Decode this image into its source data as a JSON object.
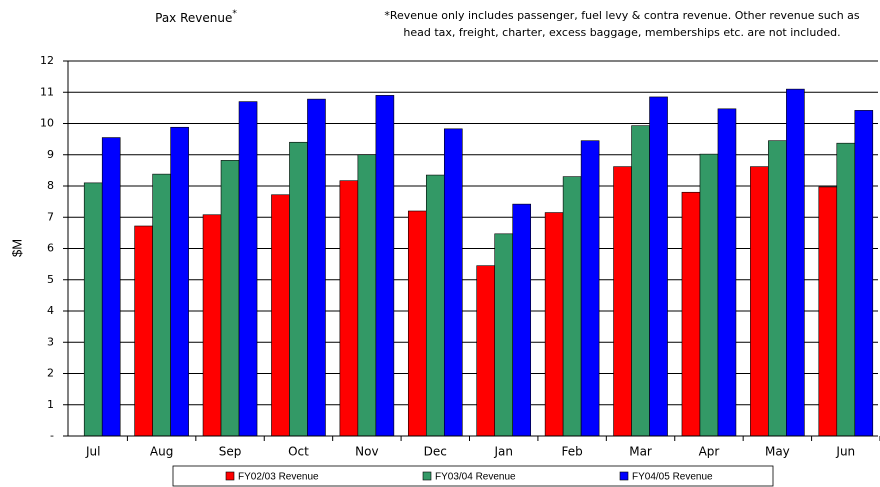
{
  "chart_data": {
    "type": "bar",
    "title": "Pax Revenue",
    "title_mark": "*",
    "footnote": [
      "*Revenue only includes passenger, fuel levy & contra revenue. Other revenue such as",
      "head tax, freight, charter, excess baggage, memberships etc. are not included."
    ],
    "y_label": "$M",
    "categories": [
      "Jul",
      "Aug",
      "Sep",
      "Oct",
      "Nov",
      "Dec",
      "Jan",
      "Feb",
      "Mar",
      "Apr",
      "May",
      "Jun"
    ],
    "series": [
      {
        "name": "FY02/03 Revenue",
        "color": "#ff0000",
        "values": [
          null,
          6.72,
          7.08,
          7.72,
          8.17,
          7.2,
          5.45,
          7.15,
          8.62,
          7.8,
          8.62,
          7.97
        ]
      },
      {
        "name": "FY03/04 Revenue",
        "color": "#339966",
        "values": [
          8.1,
          8.38,
          8.82,
          9.4,
          9.0,
          8.35,
          6.47,
          8.3,
          9.93,
          9.02,
          9.45,
          9.37
        ]
      },
      {
        "name": "FY04/05 Revenue",
        "color": "#0000ff",
        "values": [
          9.55,
          9.88,
          10.7,
          10.78,
          10.9,
          9.83,
          7.42,
          9.45,
          10.85,
          10.47,
          11.1,
          10.42
        ]
      }
    ],
    "ylim": [
      0,
      12
    ],
    "yticks": [
      {
        "value": 0,
        "label": "-"
      },
      1,
      2,
      3,
      4,
      5,
      6,
      7,
      8,
      9,
      10,
      11,
      12
    ],
    "grid": true,
    "legend": "bottom"
  }
}
